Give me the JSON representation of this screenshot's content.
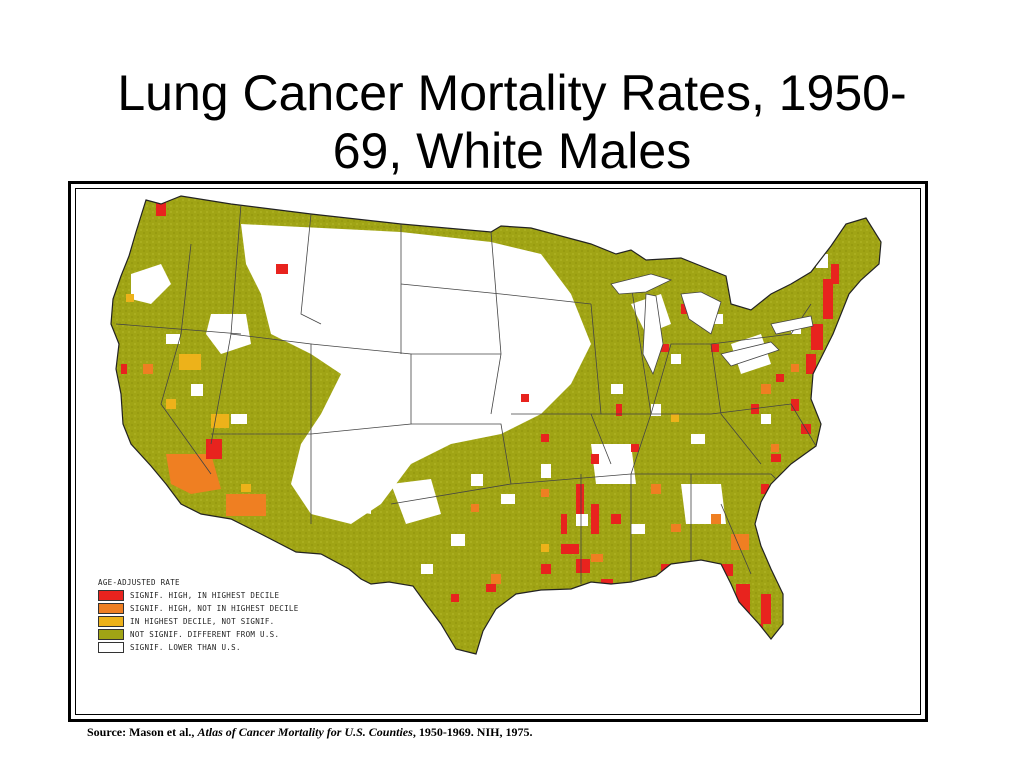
{
  "slide": {
    "title_line1": "Lung Cancer Mortality Rates, 1950-",
    "title_line2": "69, White Males"
  },
  "legend": {
    "title": "AGE-ADJUSTED RATE",
    "items": [
      {
        "label": "SIGNIF. HIGH, IN HIGHEST DECILE",
        "color": "#e8231e"
      },
      {
        "label": "SIGNIF. HIGH, NOT IN HIGHEST DECILE",
        "color": "#ef7f22"
      },
      {
        "label": "IN HIGHEST DECILE, NOT SIGNIF.",
        "color": "#edb21a"
      },
      {
        "label": "NOT SIGNIF. DIFFERENT FROM U.S.",
        "color": "#a0a415"
      },
      {
        "label": "SIGNIF. LOWER THAN U.S.",
        "color": "#ffffff"
      }
    ]
  },
  "source": {
    "prefix": "Source: Mason et al., ",
    "work": "Atlas of Cancer Mortality for U.S. Counties",
    "suffix": ", 1950-1969. NIH, 1975."
  }
}
